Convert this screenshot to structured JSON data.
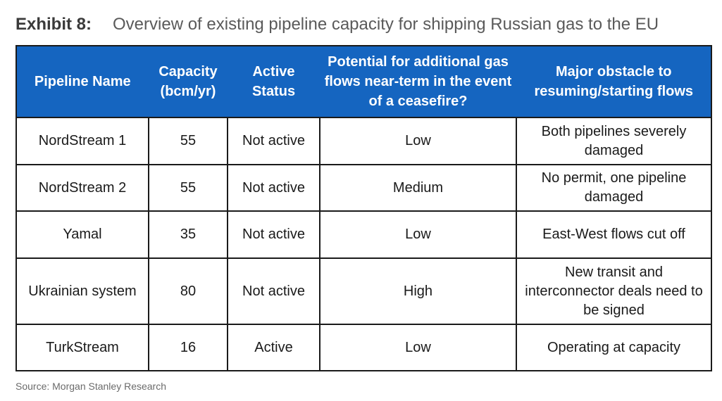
{
  "exhibit": {
    "label": "Exhibit 8:",
    "title": "Overview of existing pipeline capacity for shipping Russian gas to the EU"
  },
  "table": {
    "headers": [
      "Pipeline Name",
      "Capacity (bcm/yr)",
      "Active Status",
      "Potential for additional gas flows near-term in the event of a ceasefire?",
      "Major obstacle to resuming/starting flows"
    ],
    "rows": [
      [
        "NordStream 1",
        "55",
        "Not active",
        "Low",
        "Both pipelines severely damaged"
      ],
      [
        "NordStream 2",
        "55",
        "Not active",
        "Medium",
        "No permit, one pipeline damaged"
      ],
      [
        "Yamal",
        "35",
        "Not active",
        "Low",
        "East-West flows cut off"
      ],
      [
        "Ukrainian system",
        "80",
        "Not active",
        "High",
        "New transit and interconnector deals need to be signed"
      ],
      [
        "TurkStream",
        "16",
        "Active",
        "Low",
        "Operating at capacity"
      ]
    ]
  },
  "source": "Source: Morgan Stanley Research",
  "colors": {
    "header_background": "#1565c0",
    "header_text": "#ffffff",
    "border": "#1a1a1a"
  }
}
